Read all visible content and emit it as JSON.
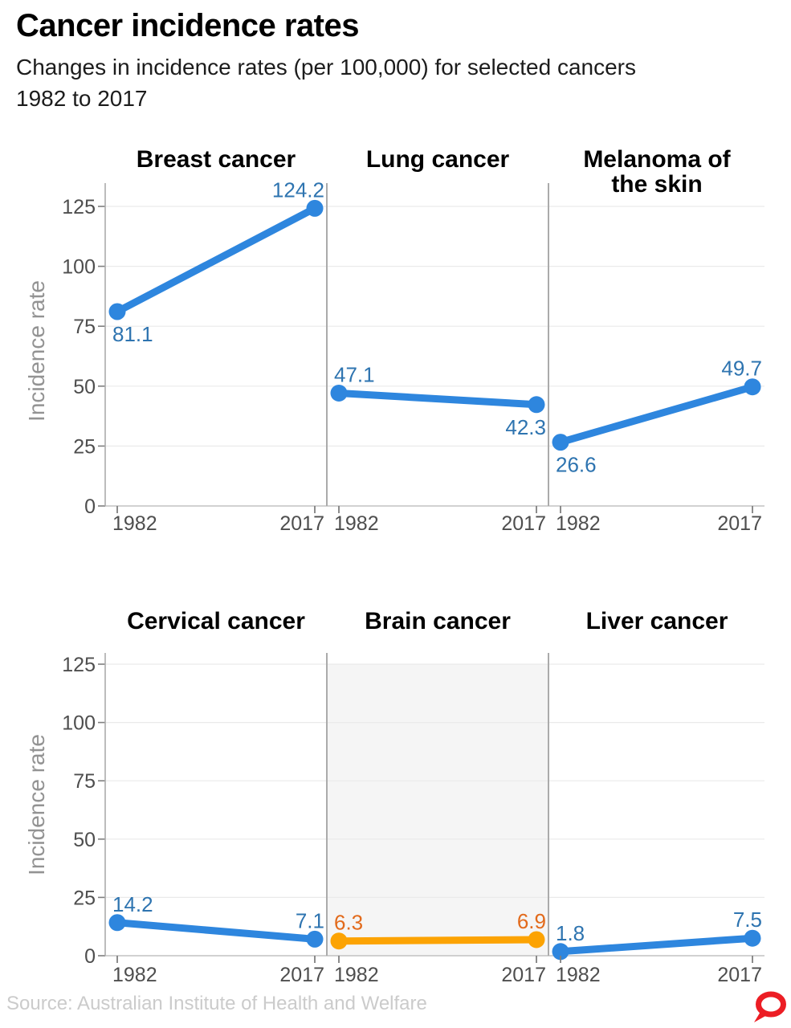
{
  "header": {
    "title": "Cancer incidence rates",
    "subtitle_line1": "Changes in incidence rates (per 100,000) for selected cancers",
    "subtitle_line2": "1982 to 2017"
  },
  "chart_data": {
    "type": "line",
    "layout": "small-multiples slope charts, 2 rows x 3 panels, shared y-axis per row, legend none, grid on",
    "x_categories": [
      "1982",
      "2017"
    ],
    "ylabel": "Incidence rate",
    "yticks": [
      0,
      25,
      50,
      75,
      100,
      125
    ],
    "ylim": [
      0,
      125
    ],
    "rows": [
      {
        "panels": [
          {
            "title": "Breast cancer",
            "values": [
              81.1,
              124.2
            ],
            "color": "blue",
            "label_pos": [
              "below",
              "above"
            ],
            "highlight": false
          },
          {
            "title": "Lung cancer",
            "values": [
              47.1,
              42.3
            ],
            "color": "blue",
            "label_pos": [
              "above",
              "below"
            ],
            "highlight": false
          },
          {
            "title": "Melanoma of\nthe skin",
            "values": [
              26.6,
              49.7
            ],
            "color": "blue",
            "label_pos": [
              "below",
              "above"
            ],
            "highlight": false
          }
        ]
      },
      {
        "panels": [
          {
            "title": "Cervical cancer",
            "values": [
              14.2,
              7.1
            ],
            "color": "blue",
            "label_pos": [
              "above",
              "above"
            ],
            "highlight": false
          },
          {
            "title": "Brain cancer",
            "values": [
              6.3,
              6.9
            ],
            "color": "orange",
            "label_pos": [
              "above",
              "above"
            ],
            "highlight": true
          },
          {
            "title": "Liver cancer",
            "values": [
              1.8,
              7.5
            ],
            "color": "blue",
            "label_pos": [
              "above",
              "above"
            ],
            "highlight": false
          }
        ]
      }
    ]
  },
  "colors": {
    "blue_line": "#2E86DE",
    "blue_label": "#2E74B0",
    "orange_line": "#FCA303",
    "orange_label": "#E26A1B",
    "grid": "#EAEAEA",
    "zero_line": "#C2C2C2",
    "divider": "#ABABAB",
    "tick_mark": "#7F7F7F",
    "tick_text": "#4E4E4E",
    "axis_label": "#939393",
    "highlight_bg": "#F5F5F5",
    "source_text": "#CBCBCB",
    "logo_red": "#EC1D24"
  },
  "footer": {
    "source": "Source: Australian Institute of Health and Welfare",
    "logo": "the-conversation-logo"
  }
}
